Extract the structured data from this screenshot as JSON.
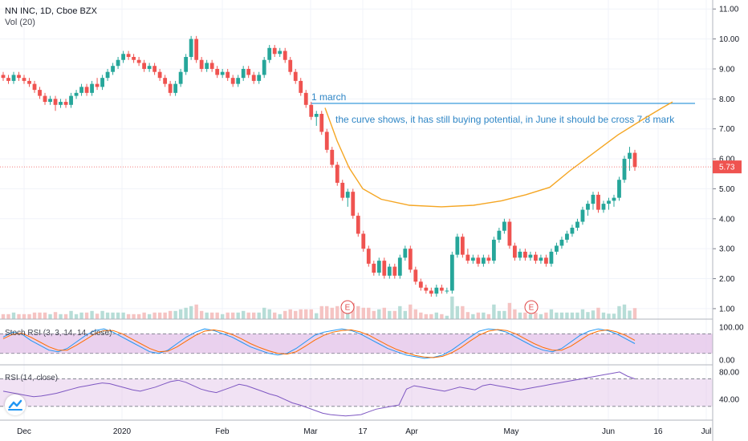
{
  "header": {
    "symbol_line": "NN INC, 1D, Cboe BZX",
    "volume_label": "Vol (20)"
  },
  "colors": {
    "up": "#26a69a",
    "down": "#ef5350",
    "curve": "#f5a623",
    "resistance": "#4aa3df",
    "annotation": "#2f86c6",
    "last_price_bg": "#ef5350",
    "stoch_k": "#2196f3",
    "stoch_d": "#ff6d00",
    "rsi_line": "#7e57c2",
    "osc_band": "#e1bee7"
  },
  "chart_data": [
    {
      "type": "candlestick",
      "title": "NN INC, 1D, Cboe BZX",
      "y_axis_ticks": [
        "11.00",
        "10.00",
        "9.00",
        "8.00",
        "7.00",
        "6.00",
        "5.00",
        "4.00",
        "3.00",
        "2.00",
        "1.00"
      ],
      "ylim": [
        0.65,
        11.3
      ],
      "x_axis_ticks": [
        "Dec",
        "2020",
        "Feb",
        "Mar",
        "17",
        "Apr",
        "May",
        "Jun",
        "16",
        "Jul"
      ],
      "last_price": "5.73",
      "annotations": {
        "resistance_label": "1 march",
        "resistance_level": 7.85,
        "note": "the curve shows, it has still buying potential, in June it should be cross 7.8 mark",
        "earnings_markers": [
          "E",
          "E"
        ]
      },
      "ohlc": [
        [
          8.8,
          8.9,
          8.6,
          8.7
        ],
        [
          8.7,
          8.8,
          8.5,
          8.6
        ],
        [
          8.6,
          8.9,
          8.5,
          8.8
        ],
        [
          8.8,
          8.9,
          8.6,
          8.7
        ],
        [
          8.7,
          8.8,
          8.5,
          8.6
        ],
        [
          8.6,
          8.7,
          8.4,
          8.5
        ],
        [
          8.5,
          8.6,
          8.2,
          8.3
        ],
        [
          8.3,
          8.4,
          8.0,
          8.1
        ],
        [
          8.1,
          8.2,
          7.8,
          7.9
        ],
        [
          7.9,
          8.1,
          7.8,
          8.0
        ],
        [
          8.0,
          8.1,
          7.6,
          7.8
        ],
        [
          7.8,
          8.0,
          7.7,
          7.9
        ],
        [
          7.9,
          8.0,
          7.7,
          7.8
        ],
        [
          7.8,
          8.2,
          7.7,
          8.1
        ],
        [
          8.1,
          8.3,
          8.0,
          8.2
        ],
        [
          8.2,
          8.5,
          8.1,
          8.4
        ],
        [
          8.4,
          8.5,
          8.1,
          8.2
        ],
        [
          8.2,
          8.6,
          8.1,
          8.5
        ],
        [
          8.5,
          8.7,
          8.3,
          8.4
        ],
        [
          8.4,
          8.8,
          8.3,
          8.7
        ],
        [
          8.7,
          9.0,
          8.6,
          8.9
        ],
        [
          8.9,
          9.2,
          8.8,
          9.1
        ],
        [
          9.1,
          9.4,
          9.0,
          9.3
        ],
        [
          9.3,
          9.6,
          9.2,
          9.5
        ],
        [
          9.5,
          9.6,
          9.3,
          9.4
        ],
        [
          9.4,
          9.5,
          9.2,
          9.3
        ],
        [
          9.3,
          9.4,
          9.1,
          9.2
        ],
        [
          9.2,
          9.3,
          8.9,
          9.0
        ],
        [
          9.0,
          9.2,
          8.9,
          9.1
        ],
        [
          9.1,
          9.2,
          8.8,
          8.9
        ],
        [
          8.9,
          9.0,
          8.6,
          8.7
        ],
        [
          8.7,
          8.8,
          8.4,
          8.5
        ],
        [
          8.5,
          8.6,
          8.1,
          8.2
        ],
        [
          8.2,
          8.6,
          8.1,
          8.5
        ],
        [
          8.5,
          9.0,
          8.4,
          8.9
        ],
        [
          8.9,
          9.5,
          8.8,
          9.4
        ],
        [
          9.4,
          10.1,
          9.3,
          10.0
        ],
        [
          10.0,
          10.1,
          9.2,
          9.3
        ],
        [
          9.3,
          9.4,
          8.9,
          9.0
        ],
        [
          9.0,
          9.3,
          8.9,
          9.2
        ],
        [
          9.2,
          9.3,
          8.9,
          9.0
        ],
        [
          9.0,
          9.1,
          8.7,
          8.8
        ],
        [
          8.8,
          9.0,
          8.7,
          8.9
        ],
        [
          8.9,
          9.0,
          8.6,
          8.7
        ],
        [
          8.7,
          8.8,
          8.4,
          8.5
        ],
        [
          8.5,
          8.8,
          8.4,
          8.7
        ],
        [
          8.7,
          9.1,
          8.6,
          9.0
        ],
        [
          9.0,
          9.1,
          8.7,
          8.8
        ],
        [
          8.8,
          8.9,
          8.5,
          8.6
        ],
        [
          8.6,
          8.9,
          8.5,
          8.8
        ],
        [
          8.8,
          9.4,
          8.7,
          9.3
        ],
        [
          9.3,
          9.8,
          9.2,
          9.7
        ],
        [
          9.7,
          9.8,
          9.4,
          9.5
        ],
        [
          9.5,
          9.7,
          9.4,
          9.6
        ],
        [
          9.6,
          9.7,
          9.2,
          9.3
        ],
        [
          9.3,
          9.4,
          8.8,
          8.9
        ],
        [
          8.9,
          9.0,
          8.5,
          8.6
        ],
        [
          8.6,
          8.7,
          8.1,
          8.2
        ],
        [
          8.2,
          8.3,
          7.7,
          7.8
        ],
        [
          7.8,
          7.9,
          7.3,
          7.4
        ],
        [
          7.4,
          7.6,
          7.1,
          7.5
        ],
        [
          7.5,
          7.6,
          6.8,
          6.9
        ],
        [
          6.9,
          7.0,
          6.2,
          6.3
        ],
        [
          6.3,
          6.4,
          5.7,
          5.8
        ],
        [
          5.8,
          5.9,
          5.1,
          5.2
        ],
        [
          5.2,
          5.3,
          4.6,
          4.7
        ],
        [
          4.7,
          5.0,
          4.4,
          4.9
        ],
        [
          4.9,
          5.0,
          4.0,
          4.1
        ],
        [
          4.1,
          4.2,
          3.4,
          3.5
        ],
        [
          3.5,
          3.6,
          2.9,
          3.0
        ],
        [
          3.0,
          3.1,
          2.4,
          2.5
        ],
        [
          2.5,
          2.6,
          2.1,
          2.2
        ],
        [
          2.2,
          2.7,
          2.1,
          2.6
        ],
        [
          2.6,
          2.7,
          2.0,
          2.1
        ],
        [
          2.1,
          2.5,
          2.0,
          2.4
        ],
        [
          2.4,
          2.5,
          2.0,
          2.1
        ],
        [
          2.1,
          2.8,
          2.0,
          2.7
        ],
        [
          2.7,
          3.1,
          2.6,
          3.0
        ],
        [
          3.0,
          3.1,
          2.2,
          2.3
        ],
        [
          2.3,
          2.4,
          1.8,
          1.9
        ],
        [
          1.9,
          2.0,
          1.6,
          1.7
        ],
        [
          1.7,
          1.8,
          1.5,
          1.6
        ],
        [
          1.6,
          1.7,
          1.4,
          1.5
        ],
        [
          1.5,
          1.8,
          1.4,
          1.7
        ],
        [
          1.7,
          1.8,
          1.5,
          1.6
        ],
        [
          1.6,
          1.7,
          1.5,
          1.6
        ],
        [
          1.6,
          2.9,
          1.5,
          2.8
        ],
        [
          2.8,
          3.5,
          2.7,
          3.4
        ],
        [
          3.4,
          3.5,
          2.7,
          2.8
        ],
        [
          2.8,
          3.0,
          2.5,
          2.6
        ],
        [
          2.6,
          2.8,
          2.5,
          2.7
        ],
        [
          2.7,
          2.8,
          2.4,
          2.5
        ],
        [
          2.5,
          2.8,
          2.4,
          2.7
        ],
        [
          2.7,
          2.8,
          2.5,
          2.6
        ],
        [
          2.6,
          3.4,
          2.5,
          3.3
        ],
        [
          3.3,
          3.7,
          3.2,
          3.6
        ],
        [
          3.6,
          4.0,
          3.5,
          3.9
        ],
        [
          3.9,
          4.0,
          3.0,
          3.1
        ],
        [
          3.1,
          3.2,
          2.6,
          2.7
        ],
        [
          2.7,
          3.0,
          2.6,
          2.9
        ],
        [
          2.9,
          3.0,
          2.6,
          2.7
        ],
        [
          2.7,
          2.9,
          2.6,
          2.8
        ],
        [
          2.8,
          2.9,
          2.5,
          2.6
        ],
        [
          2.6,
          2.8,
          2.5,
          2.7
        ],
        [
          2.7,
          2.8,
          2.4,
          2.5
        ],
        [
          2.5,
          3.0,
          2.4,
          2.9
        ],
        [
          2.9,
          3.2,
          2.8,
          3.1
        ],
        [
          3.1,
          3.4,
          3.0,
          3.3
        ],
        [
          3.3,
          3.6,
          3.2,
          3.5
        ],
        [
          3.5,
          3.8,
          3.4,
          3.7
        ],
        [
          3.7,
          4.0,
          3.6,
          3.9
        ],
        [
          3.9,
          4.4,
          3.8,
          4.3
        ],
        [
          4.3,
          4.6,
          4.1,
          4.5
        ],
        [
          4.5,
          4.9,
          4.3,
          4.8
        ],
        [
          4.8,
          4.9,
          4.2,
          4.3
        ],
        [
          4.3,
          4.6,
          4.2,
          4.5
        ],
        [
          4.5,
          4.7,
          4.3,
          4.6
        ],
        [
          4.6,
          4.8,
          4.4,
          4.7
        ],
        [
          4.7,
          5.4,
          4.6,
          5.3
        ],
        [
          5.3,
          6.1,
          5.2,
          6.0
        ],
        [
          6.0,
          6.4,
          5.6,
          6.2
        ],
        [
          6.2,
          6.3,
          5.6,
          5.73
        ]
      ]
    },
    {
      "type": "line",
      "title": "Stoch RSI (3, 3, 14, 14, close)",
      "y_axis_ticks": [
        "100.00",
        "0.00"
      ],
      "ylim": [
        -15,
        120
      ],
      "band": [
        20,
        80
      ],
      "series": [
        {
          "values": [
            70,
            85,
            80,
            60,
            45,
            30,
            25,
            35,
            55,
            75,
            90,
            95,
            85,
            70,
            55,
            40,
            25,
            20,
            30,
            50,
            70,
            85,
            95,
            90,
            80,
            70,
            55,
            40,
            30,
            20,
            15,
            20,
            35,
            55,
            75,
            85,
            90,
            95,
            90,
            80,
            65,
            50,
            35,
            25,
            15,
            10,
            5,
            8,
            15,
            30,
            50,
            70,
            88,
            95,
            92,
            85,
            70,
            55,
            40,
            30,
            25,
            35,
            55,
            75,
            88,
            95,
            90,
            80,
            65,
            50
          ]
        },
        {
          "values": [
            65,
            78,
            82,
            70,
            55,
            40,
            30,
            30,
            45,
            62,
            80,
            90,
            90,
            80,
            65,
            50,
            35,
            25,
            27,
            40,
            58,
            75,
            88,
            92,
            87,
            78,
            65,
            50,
            38,
            28,
            20,
            18,
            25,
            42,
            60,
            75,
            85,
            90,
            92,
            86,
            75,
            60,
            45,
            32,
            22,
            14,
            9,
            7,
            11,
            22,
            38,
            58,
            76,
            88,
            93,
            90,
            80,
            65,
            50,
            38,
            30,
            30,
            42,
            60,
            78,
            88,
            92,
            86,
            75,
            60
          ]
        }
      ]
    },
    {
      "type": "line",
      "title": "RSI (14, close)",
      "y_axis_ticks": [
        "80.00",
        "40.00"
      ],
      "ylim": [
        10,
        88
      ],
      "band": [
        30,
        70
      ],
      "series": [
        {
          "values": [
            52,
            50,
            48,
            46,
            44,
            45,
            47,
            49,
            52,
            55,
            58,
            60,
            62,
            64,
            63,
            60,
            57,
            54,
            52,
            55,
            58,
            62,
            66,
            68,
            65,
            60,
            55,
            52,
            50,
            54,
            58,
            62,
            60,
            56,
            52,
            48,
            45,
            40,
            35,
            32,
            28,
            24,
            20,
            18,
            17,
            16,
            17,
            18,
            22,
            26,
            28,
            30,
            32,
            55,
            60,
            58,
            56,
            54,
            52,
            55,
            58,
            56,
            54,
            60,
            62,
            60,
            58,
            56,
            54,
            56,
            58,
            60,
            62,
            64,
            66,
            68,
            70,
            72,
            74,
            76,
            78,
            80,
            74,
            70
          ]
        }
      ]
    }
  ]
}
